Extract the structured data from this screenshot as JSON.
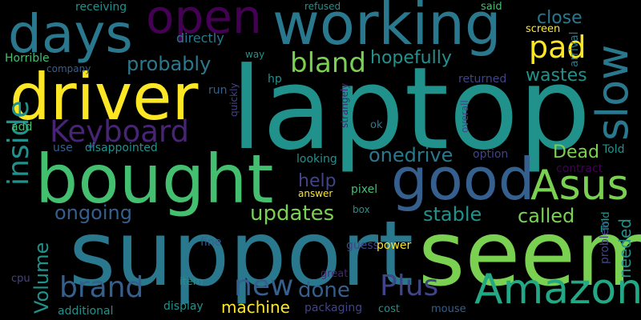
{
  "palette": {
    "background": "#000000",
    "dark_purple": "#440154",
    "purple": "#482475",
    "indigo": "#414487",
    "blue": "#355f8d",
    "steel_blue": "#2a788e",
    "teal": "#21918c",
    "sea_green": "#22a884",
    "green": "#44bf70",
    "light_green": "#7ad151",
    "yellow": "#fde725"
  },
  "words": [
    {
      "text": "laptop",
      "orientation": "horizontal",
      "color": "#21918c"
    },
    {
      "text": "support",
      "orientation": "horizontal",
      "color": "#2a788e"
    },
    {
      "text": "seem",
      "orientation": "horizontal",
      "color": "#7ad151"
    },
    {
      "text": "bought",
      "orientation": "horizontal",
      "color": "#44bf70"
    },
    {
      "text": "driver",
      "orientation": "horizontal",
      "color": "#fde725"
    },
    {
      "text": "working",
      "orientation": "horizontal",
      "color": "#2a788e"
    },
    {
      "text": "good",
      "orientation": "horizontal",
      "color": "#355f8d"
    },
    {
      "text": "days",
      "orientation": "horizontal",
      "color": "#2a788e"
    },
    {
      "text": "open",
      "orientation": "horizontal",
      "color": "#440154"
    },
    {
      "text": "Amazon",
      "orientation": "horizontal",
      "color": "#22a884"
    },
    {
      "text": "Asus",
      "orientation": "horizontal",
      "color": "#7ad151"
    },
    {
      "text": "slow",
      "orientation": "vertical",
      "color": "#2a788e"
    },
    {
      "text": "Keyboard",
      "orientation": "horizontal",
      "color": "#482475"
    },
    {
      "text": "brand",
      "orientation": "horizontal",
      "color": "#355f8d"
    },
    {
      "text": "Plus",
      "orientation": "horizontal",
      "color": "#414487"
    },
    {
      "text": "new",
      "orientation": "horizontal",
      "color": "#355f8d"
    },
    {
      "text": "bland",
      "orientation": "horizontal",
      "color": "#7ad151"
    },
    {
      "text": "pad",
      "orientation": "horizontal",
      "color": "#fde725"
    },
    {
      "text": "inside",
      "orientation": "vertical",
      "color": "#21918c"
    },
    {
      "text": "updates",
      "orientation": "horizontal",
      "color": "#7ad151"
    },
    {
      "text": "Volume",
      "orientation": "vertical",
      "color": "#21918c"
    },
    {
      "text": "done",
      "orientation": "horizontal",
      "color": "#355f8d"
    },
    {
      "text": "stable",
      "orientation": "horizontal",
      "color": "#21918c"
    },
    {
      "text": "called",
      "orientation": "horizontal",
      "color": "#7ad151"
    },
    {
      "text": "onedrive",
      "orientation": "horizontal",
      "color": "#2a788e"
    },
    {
      "text": "ongoing",
      "orientation": "horizontal",
      "color": "#355f8d"
    },
    {
      "text": "probably",
      "orientation": "horizontal",
      "color": "#2a788e"
    },
    {
      "text": "hopefully",
      "orientation": "horizontal",
      "color": "#21918c"
    },
    {
      "text": "close",
      "orientation": "horizontal",
      "color": "#2a788e"
    },
    {
      "text": "wastes",
      "orientation": "horizontal",
      "color": "#21918c"
    },
    {
      "text": "Dead",
      "orientation": "horizontal",
      "color": "#7ad151"
    },
    {
      "text": "help",
      "orientation": "horizontal",
      "color": "#414487"
    },
    {
      "text": "machine",
      "orientation": "horizontal",
      "color": "#fde725"
    },
    {
      "text": "needed",
      "orientation": "vertical",
      "color": "#21918c"
    },
    {
      "text": "directly",
      "orientation": "horizontal",
      "color": "#2a788e"
    },
    {
      "text": "Horrible",
      "orientation": "horizontal",
      "color": "#44bf70"
    },
    {
      "text": "disappointed",
      "orientation": "horizontal",
      "color": "#21918c"
    },
    {
      "text": "additional",
      "orientation": "horizontal",
      "color": "#21918c"
    },
    {
      "text": "display",
      "orientation": "horizontal",
      "color": "#21918c"
    },
    {
      "text": "packaging",
      "orientation": "horizontal",
      "color": "#414487"
    },
    {
      "text": "receiving",
      "orientation": "horizontal",
      "color": "#21918c"
    },
    {
      "text": "hp",
      "orientation": "horizontal",
      "color": "#21918c"
    },
    {
      "text": "run",
      "orientation": "horizontal",
      "color": "#355f8d"
    },
    {
      "text": "looking",
      "orientation": "horizontal",
      "color": "#21918c"
    },
    {
      "text": "pixel",
      "orientation": "horizontal",
      "color": "#44bf70"
    },
    {
      "text": "option",
      "orientation": "horizontal",
      "color": "#414487"
    },
    {
      "text": "Told",
      "orientation": "horizontal",
      "color": "#21918c"
    },
    {
      "text": "contract",
      "orientation": "horizontal",
      "color": "#440154"
    },
    {
      "text": "arrival",
      "orientation": "vertical",
      "color": "#2a788e"
    },
    {
      "text": "returned",
      "orientation": "horizontal",
      "color": "#414487"
    },
    {
      "text": "screen",
      "orientation": "horizontal",
      "color": "#fde725"
    },
    {
      "text": "said",
      "orientation": "horizontal",
      "color": "#44bf70"
    },
    {
      "text": "refused",
      "orientation": "horizontal",
      "color": "#21918c"
    },
    {
      "text": "way",
      "orientation": "horizontal",
      "color": "#21918c"
    },
    {
      "text": "company",
      "orientation": "horizontal",
      "color": "#355f8d"
    },
    {
      "text": "add",
      "orientation": "horizontal",
      "color": "#44bf70"
    },
    {
      "text": "use",
      "orientation": "horizontal",
      "color": "#355f8d"
    },
    {
      "text": "quickly",
      "orientation": "vertical",
      "color": "#414487"
    },
    {
      "text": "strangely",
      "orientation": "vertical",
      "color": "#482475"
    },
    {
      "text": "ok",
      "orientation": "horizontal",
      "color": "#2a788e"
    },
    {
      "text": "overall",
      "orientation": "vertical",
      "color": "#414487"
    },
    {
      "text": "answer",
      "orientation": "horizontal",
      "color": "#fde725"
    },
    {
      "text": "box",
      "orientation": "horizontal",
      "color": "#21918c"
    },
    {
      "text": "fine",
      "orientation": "horizontal",
      "color": "#355f8d"
    },
    {
      "text": "guess",
      "orientation": "horizontal",
      "color": "#414487"
    },
    {
      "text": "power",
      "orientation": "horizontal",
      "color": "#fde725"
    },
    {
      "text": "problem",
      "orientation": "vertical",
      "color": "#414487"
    },
    {
      "text": "cpu",
      "orientation": "horizontal",
      "color": "#414487"
    },
    {
      "text": "item",
      "orientation": "horizontal",
      "color": "#21918c"
    },
    {
      "text": "great",
      "orientation": "horizontal",
      "color": "#482475"
    },
    {
      "text": "cost",
      "orientation": "horizontal",
      "color": "#21918c"
    },
    {
      "text": "mouse",
      "orientation": "horizontal",
      "color": "#355f8d"
    },
    {
      "text": "Told",
      "orientation": "vertical",
      "color": "#21918c"
    }
  ]
}
